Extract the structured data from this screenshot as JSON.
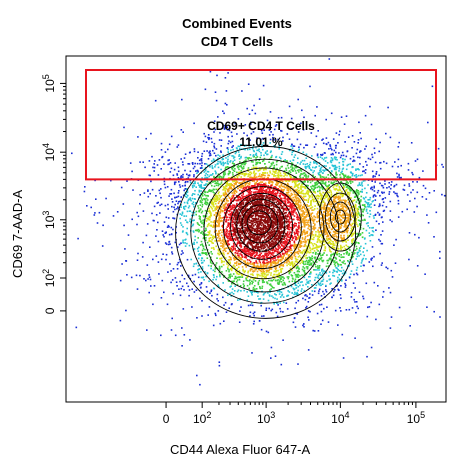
{
  "chart_data": {
    "type": "scatter",
    "title": "Combined Events",
    "subtitle": "CD4 T Cells",
    "xlabel": "CD44 Alexa Fluor 647-A",
    "ylabel": "CD69 7-AAD-A",
    "x_scale": "biexponential",
    "y_scale": "biexponential",
    "x_ticks": [
      {
        "value": 0,
        "label": "0"
      },
      {
        "value": 100,
        "label": "10^2"
      },
      {
        "value": 1000,
        "label": "10^3"
      },
      {
        "value": 10000,
        "label": "10^4"
      },
      {
        "value": 100000,
        "label": "10^5"
      }
    ],
    "y_ticks": [
      {
        "value": 0,
        "label": "0"
      },
      {
        "value": 100,
        "label": "10^2"
      },
      {
        "value": 1000,
        "label": "10^3"
      },
      {
        "value": 10000,
        "label": "10^4"
      },
      {
        "value": 100000,
        "label": "10^5"
      }
    ],
    "gate": {
      "name": "CD69+ CD4 T Cells",
      "percent_label": "11.01 %",
      "percent": 11.01,
      "x_range": [
        -1000,
        250000
      ],
      "y_range": [
        4000,
        250000
      ],
      "color": "#e8141e"
    },
    "populations": [
      {
        "name": "main",
        "center_x": 800,
        "center_y": 900,
        "density": "high"
      },
      {
        "name": "cd44-high",
        "center_x": 10000,
        "center_y": 1100,
        "density": "medium"
      }
    ],
    "density_colors": [
      "#1a2fd6",
      "#27c4d6",
      "#40d040",
      "#d8e21c",
      "#f2a31a",
      "#e8141e",
      "#8a0a0a"
    ],
    "contours": true,
    "grid": false,
    "legend": "none"
  }
}
